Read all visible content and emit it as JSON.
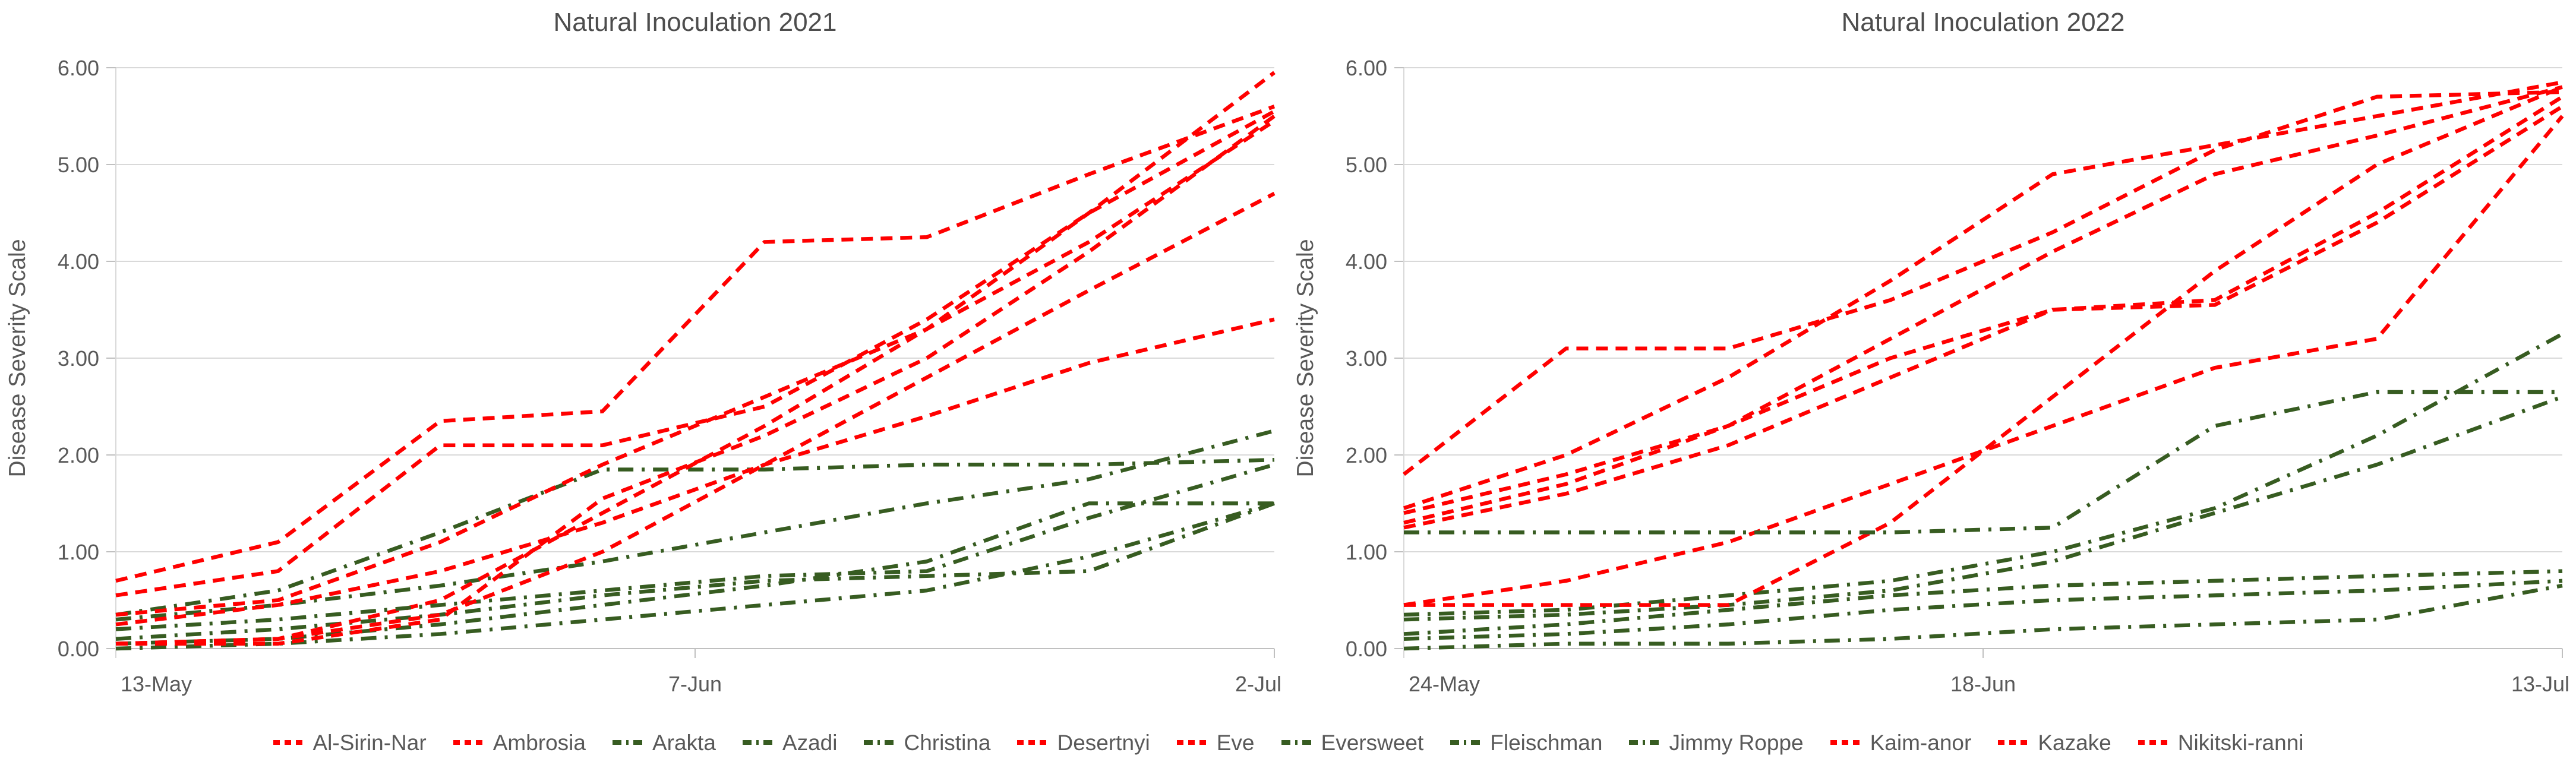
{
  "page_title": "Natural Inoculation disease severity line charts",
  "colors": {
    "red": "#FF0000",
    "green": "#375C21",
    "grid": "#D9D9D9",
    "axis": "#C0C0C0",
    "tick_text": "#595959",
    "title_text": "#4D4D4D"
  },
  "legend": {
    "items": [
      {
        "label": "Al-Sirin-Nar",
        "group": "red"
      },
      {
        "label": "Ambrosia",
        "group": "red"
      },
      {
        "label": "Arakta",
        "group": "green"
      },
      {
        "label": "Azadi",
        "group": "green"
      },
      {
        "label": "Christina",
        "group": "green"
      },
      {
        "label": "Desertnyi",
        "group": "red"
      },
      {
        "label": "Eve",
        "group": "red"
      },
      {
        "label": "Eversweet",
        "group": "green"
      },
      {
        "label": "Fleischman",
        "group": "green"
      },
      {
        "label": "Jimmy Roppe",
        "group": "green"
      },
      {
        "label": "Kaim-anor",
        "group": "red"
      },
      {
        "label": "Kazake",
        "group": "red"
      },
      {
        "label": "Nikitski-ranni",
        "group": "red"
      }
    ]
  },
  "chart_data": [
    {
      "type": "line",
      "title": "Natural Inoculation 2021",
      "ylabel": "Disease Severity Scale",
      "ylim": [
        0,
        6
      ],
      "grid": true,
      "legend_position": "bottom",
      "y_ticks": [
        "0.00",
        "1.00",
        "2.00",
        "3.00",
        "4.00",
        "5.00",
        "6.00"
      ],
      "x_tick_labels": [
        "13-May",
        "7-Jun",
        "2-Jul"
      ],
      "x_days": [
        0,
        7,
        14,
        21,
        28,
        35,
        42,
        50
      ],
      "xmax_days": 50,
      "series": [
        {
          "name": "Al-Sirin-Nar",
          "group": "red",
          "values": [
            0.7,
            1.1,
            2.35,
            2.45,
            4.2,
            4.25,
            4.9,
            5.6
          ]
        },
        {
          "name": "Ambrosia",
          "group": "red",
          "values": [
            0.55,
            0.8,
            2.1,
            2.1,
            2.5,
            3.4,
            4.5,
            5.55
          ]
        },
        {
          "name": "Arakta",
          "group": "green",
          "values": [
            0.35,
            0.6,
            1.2,
            1.85,
            1.85,
            1.9,
            1.9,
            1.95
          ]
        },
        {
          "name": "Azadi",
          "group": "green",
          "values": [
            0.1,
            0.2,
            0.35,
            0.55,
            0.7,
            0.75,
            0.8,
            1.5
          ]
        },
        {
          "name": "Christina",
          "group": "green",
          "values": [
            0.3,
            0.45,
            0.65,
            0.9,
            1.2,
            1.5,
            1.75,
            2.25
          ]
        },
        {
          "name": "Desertnyi",
          "group": "red",
          "values": [
            0.05,
            0.1,
            0.5,
            1.4,
            2.3,
            3.3,
            4.5,
            5.95
          ]
        },
        {
          "name": "Eve",
          "group": "red",
          "values": [
            0.25,
            0.45,
            0.8,
            1.3,
            1.9,
            2.4,
            2.95,
            3.4
          ]
        },
        {
          "name": "Eversweet",
          "group": "green",
          "values": [
            0.05,
            0.1,
            0.25,
            0.45,
            0.65,
            0.9,
            1.5,
            1.5
          ]
        },
        {
          "name": "Fleischman",
          "group": "green",
          "values": [
            0.2,
            0.3,
            0.45,
            0.6,
            0.75,
            0.8,
            1.35,
            1.9
          ]
        },
        {
          "name": "Jimmy Roppe",
          "group": "green",
          "values": [
            0.0,
            0.05,
            0.15,
            0.3,
            0.45,
            0.6,
            0.95,
            1.5
          ]
        },
        {
          "name": "Kaim-anor",
          "group": "red",
          "values": [
            0.35,
            0.5,
            1.1,
            1.9,
            2.6,
            3.3,
            4.2,
            5.45
          ]
        },
        {
          "name": "Kazake",
          "group": "red",
          "values": [
            0.05,
            0.1,
            0.35,
            1.0,
            1.9,
            2.8,
            3.7,
            4.7
          ]
        },
        {
          "name": "Nikitski-ranni",
          "group": "red",
          "values": [
            0.05,
            0.05,
            0.3,
            1.55,
            2.2,
            3.0,
            4.1,
            5.5
          ]
        }
      ]
    },
    {
      "type": "line",
      "title": "Natural Inoculation 2022",
      "ylabel": "Disease Severity Scale",
      "ylim": [
        0,
        6
      ],
      "grid": true,
      "legend_position": "bottom",
      "y_ticks": [
        "0.00",
        "1.00",
        "2.00",
        "3.00",
        "4.00",
        "5.00",
        "6.00"
      ],
      "x_tick_labels": [
        "24-May",
        "18-Jun",
        "13-Jul"
      ],
      "x_days": [
        0,
        7,
        14,
        21,
        28,
        35,
        42,
        50
      ],
      "xmax_days": 50,
      "series": [
        {
          "name": "Al-Sirin-Nar",
          "group": "red",
          "values": [
            1.45,
            2.0,
            2.8,
            3.8,
            4.9,
            5.2,
            5.5,
            5.85
          ]
        },
        {
          "name": "Ambrosia",
          "group": "red",
          "values": [
            1.4,
            1.8,
            2.3,
            3.2,
            4.1,
            4.9,
            5.3,
            5.8
          ]
        },
        {
          "name": "Arakta",
          "group": "green",
          "values": [
            0.35,
            0.4,
            0.55,
            0.7,
            1.0,
            1.45,
            2.2,
            3.25
          ]
        },
        {
          "name": "Azadi",
          "group": "green",
          "values": [
            0.1,
            0.15,
            0.25,
            0.4,
            0.5,
            0.55,
            0.6,
            0.7
          ]
        },
        {
          "name": "Christina",
          "group": "green",
          "values": [
            0.3,
            0.35,
            0.45,
            0.6,
            0.9,
            1.4,
            1.9,
            2.6
          ]
        },
        {
          "name": "Desertnyi",
          "group": "red",
          "values": [
            0.45,
            0.45,
            0.45,
            1.3,
            2.6,
            3.9,
            5.0,
            5.8
          ]
        },
        {
          "name": "Eve",
          "group": "red",
          "values": [
            0.45,
            0.7,
            1.1,
            1.7,
            2.3,
            2.9,
            3.2,
            5.5
          ]
        },
        {
          "name": "Eversweet",
          "group": "green",
          "values": [
            0.15,
            0.25,
            0.4,
            0.55,
            0.65,
            0.7,
            0.75,
            0.8
          ]
        },
        {
          "name": "Fleischman",
          "group": "green",
          "values": [
            1.2,
            1.2,
            1.2,
            1.2,
            1.25,
            2.3,
            2.65,
            2.65
          ]
        },
        {
          "name": "Jimmy Roppe",
          "group": "green",
          "values": [
            0.0,
            0.05,
            0.05,
            0.1,
            0.2,
            0.25,
            0.3,
            0.65
          ]
        },
        {
          "name": "Kaim-anor",
          "group": "red",
          "values": [
            1.8,
            3.1,
            3.1,
            3.6,
            4.3,
            5.15,
            5.7,
            5.75
          ]
        },
        {
          "name": "Kazake",
          "group": "red",
          "values": [
            1.3,
            1.7,
            2.3,
            3.0,
            3.5,
            3.6,
            4.5,
            5.7
          ]
        },
        {
          "name": "Nikitski-ranni",
          "group": "red",
          "values": [
            1.25,
            1.6,
            2.1,
            2.8,
            3.5,
            3.55,
            4.4,
            5.6
          ]
        }
      ]
    }
  ]
}
